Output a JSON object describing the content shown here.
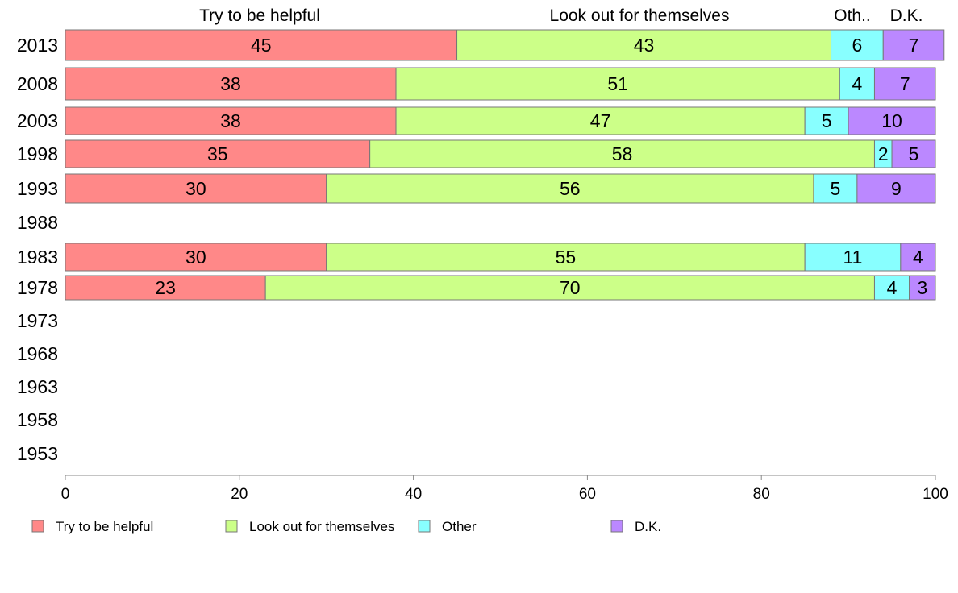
{
  "chart_data": {
    "type": "bar",
    "orientation": "horizontal",
    "stacked": true,
    "categories": [
      "2013",
      "2008",
      "2003",
      "1998",
      "1993",
      "1988",
      "1983",
      "1978",
      "1973",
      "1968",
      "1963",
      "1958",
      "1953"
    ],
    "series": [
      {
        "name": "Try to be helpful",
        "color": "#ff8888",
        "values": [
          45,
          38,
          38,
          35,
          30,
          null,
          30,
          23,
          null,
          null,
          null,
          null,
          null
        ]
      },
      {
        "name": "Look out for themselves",
        "color": "#ccff88",
        "values": [
          43,
          51,
          47,
          58,
          56,
          null,
          55,
          70,
          null,
          null,
          null,
          null,
          null
        ]
      },
      {
        "name": "Other",
        "color": "#88ffff",
        "values": [
          6,
          4,
          5,
          2,
          5,
          null,
          11,
          4,
          null,
          null,
          null,
          null,
          null
        ]
      },
      {
        "name": "D.K.",
        "color": "#bb88ff",
        "values": [
          7,
          7,
          10,
          5,
          9,
          null,
          4,
          3,
          null,
          null,
          null,
          null,
          null
        ]
      }
    ],
    "column_headers": [
      "Try to be helpful",
      "Look out for themselves",
      "Oth..",
      "D.K."
    ],
    "xlim": [
      0,
      100
    ],
    "xticks": [
      "0",
      "20",
      "40",
      "60",
      "80",
      "100"
    ],
    "grid": false,
    "legend": "bottom"
  }
}
